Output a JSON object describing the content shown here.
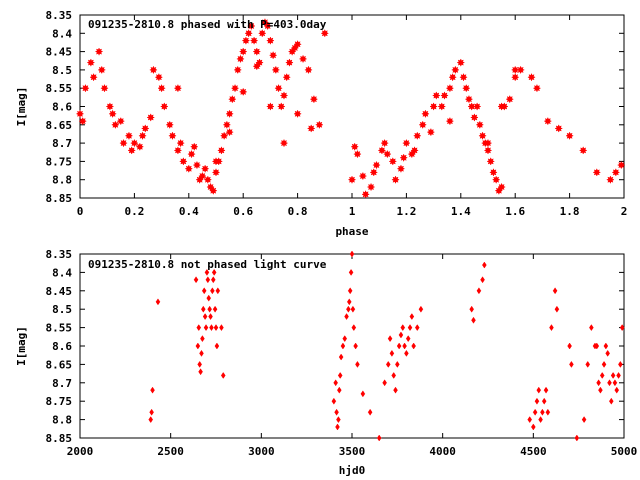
{
  "colors": {
    "points": "#ff0000",
    "axes": "#000000",
    "background": "#ffffff"
  },
  "chart_data": [
    {
      "type": "scatter",
      "title": "091235-2810.8 phased with P=403.0day",
      "xlabel": "phase",
      "ylabel": "I[mag]",
      "xlim": [
        0,
        2
      ],
      "ylim": [
        8.35,
        8.85
      ],
      "y_inverted": true,
      "grid": false,
      "x_ticks": [
        0,
        0.2,
        0.4,
        0.6,
        0.8,
        1,
        1.2,
        1.4,
        1.6,
        1.8,
        2
      ],
      "x_tick_labels": [
        "0",
        "0.2",
        "0.4",
        "0.6",
        "0.8",
        "1",
        "1.2",
        "1.4",
        "1.6",
        "1.8",
        "2"
      ],
      "y_ticks": [
        8.35,
        8.4,
        8.45,
        8.5,
        8.55,
        8.6,
        8.65,
        8.7,
        8.75,
        8.8,
        8.85
      ],
      "y_tick_labels": [
        "8.35",
        "8.4",
        "8.45",
        "8.5",
        "8.55",
        "8.6",
        "8.65",
        "8.7",
        "8.75",
        "8.8",
        "8.85"
      ],
      "marker": "star",
      "series": [
        {
          "x": [
            0.0,
            0.01,
            0.02,
            0.04,
            0.05,
            0.07,
            0.08,
            0.09,
            0.11,
            0.12,
            0.13,
            0.15,
            0.16,
            0.18,
            0.19,
            0.2,
            0.22,
            0.23,
            0.24,
            0.26,
            0.27,
            0.29,
            0.3,
            0.31,
            0.33,
            0.34,
            0.36,
            0.37,
            0.38,
            0.4,
            0.41,
            0.42,
            0.43,
            0.44,
            0.45,
            0.46,
            0.47,
            0.48,
            0.49,
            0.5,
            0.51,
            0.52,
            0.53,
            0.54,
            0.55,
            0.56,
            0.57,
            0.58,
            0.59,
            0.6,
            0.61,
            0.62,
            0.63,
            0.64,
            0.65,
            0.66,
            0.67,
            0.68,
            0.69,
            0.7,
            0.71,
            0.72,
            0.73,
            0.74,
            0.75,
            0.76,
            0.77,
            0.78,
            0.79,
            0.8,
            0.82,
            0.84,
            0.86,
            0.88,
            0.9,
            0.36,
            0.5,
            0.55,
            0.6,
            0.65,
            0.7,
            0.75,
            0.8,
            0.85,
            1.0,
            1.01,
            1.02,
            1.04,
            1.05,
            1.07,
            1.08,
            1.09,
            1.11,
            1.12,
            1.13,
            1.15,
            1.16,
            1.18,
            1.19,
            1.2,
            1.22,
            1.23,
            1.24,
            1.26,
            1.27,
            1.29,
            1.3,
            1.31,
            1.33,
            1.34,
            1.36,
            1.37,
            1.38,
            1.4,
            1.41,
            1.42,
            1.43,
            1.44,
            1.45,
            1.46,
            1.47,
            1.48,
            1.49,
            1.5,
            1.51,
            1.52,
            1.53,
            1.54,
            1.55,
            1.56,
            1.58,
            1.6,
            1.62,
            1.66,
            1.68,
            1.72,
            1.76,
            1.8,
            1.85,
            1.9,
            1.95,
            1.97,
            1.99,
            1.36,
            1.5,
            1.55,
            1.6
          ],
          "y": [
            8.62,
            8.64,
            8.55,
            8.48,
            8.52,
            8.45,
            8.5,
            8.55,
            8.6,
            8.62,
            8.65,
            8.64,
            8.7,
            8.68,
            8.72,
            8.7,
            8.71,
            8.68,
            8.66,
            8.63,
            8.5,
            8.52,
            8.55,
            8.6,
            8.65,
            8.68,
            8.72,
            8.7,
            8.75,
            8.77,
            8.73,
            8.71,
            8.76,
            8.8,
            8.79,
            8.77,
            8.8,
            8.82,
            8.83,
            8.78,
            8.75,
            8.72,
            8.68,
            8.65,
            8.62,
            8.58,
            8.55,
            8.5,
            8.47,
            8.45,
            8.42,
            8.4,
            8.38,
            8.42,
            8.45,
            8.48,
            8.4,
            8.37,
            8.38,
            8.42,
            8.46,
            8.5,
            8.55,
            8.6,
            8.57,
            8.52,
            8.48,
            8.45,
            8.44,
            8.43,
            8.47,
            8.5,
            8.58,
            8.65,
            8.4,
            8.55,
            8.75,
            8.67,
            8.56,
            8.49,
            8.6,
            8.7,
            8.62,
            8.66,
            8.8,
            8.71,
            8.73,
            8.79,
            8.84,
            8.82,
            8.78,
            8.76,
            8.72,
            8.7,
            8.73,
            8.75,
            8.8,
            8.77,
            8.74,
            8.7,
            8.73,
            8.72,
            8.68,
            8.65,
            8.62,
            8.67,
            8.6,
            8.57,
            8.6,
            8.57,
            8.55,
            8.52,
            8.5,
            8.48,
            8.52,
            8.55,
            8.58,
            8.6,
            8.63,
            8.6,
            8.65,
            8.68,
            8.7,
            8.72,
            8.75,
            8.78,
            8.8,
            8.83,
            8.82,
            8.6,
            8.58,
            8.52,
            8.5,
            8.52,
            8.55,
            8.64,
            8.66,
            8.68,
            8.72,
            8.78,
            8.8,
            8.78,
            8.76,
            8.64,
            8.7,
            8.6,
            8.5
          ],
          "name": ""
        }
      ]
    },
    {
      "type": "scatter",
      "title": "091235-2810.8 not phased light curve",
      "xlabel": "hjd0",
      "ylabel": "I[mag]",
      "xlim": [
        2000,
        5000
      ],
      "ylim": [
        8.35,
        8.85
      ],
      "y_inverted": true,
      "grid": false,
      "x_ticks": [
        2000,
        2500,
        3000,
        3500,
        4000,
        4500,
        5000
      ],
      "x_tick_labels": [
        "2000",
        "2500",
        "3000",
        "3500",
        "4000",
        "4500",
        "5000"
      ],
      "y_ticks": [
        8.35,
        8.4,
        8.45,
        8.5,
        8.55,
        8.6,
        8.65,
        8.7,
        8.75,
        8.8,
        8.85
      ],
      "y_tick_labels": [
        "8.35",
        "8.4",
        "8.45",
        "8.5",
        "8.55",
        "8.6",
        "8.65",
        "8.7",
        "8.75",
        "8.8",
        "8.85"
      ],
      "marker": "diamond",
      "series": [
        {
          "x": [
            2390,
            2395,
            2400,
            2430,
            2640,
            2650,
            2655,
            2660,
            2665,
            2670,
            2675,
            2680,
            2685,
            2690,
            2695,
            2700,
            2705,
            2710,
            2715,
            2720,
            2725,
            2730,
            2735,
            2740,
            2745,
            2750,
            2755,
            2760,
            2780,
            2790,
            3400,
            3410,
            3415,
            3420,
            3425,
            3430,
            3435,
            3440,
            3450,
            3460,
            3470,
            3480,
            3485,
            3490,
            3495,
            3500,
            3505,
            3510,
            3520,
            3530,
            3560,
            3600,
            3650,
            3680,
            3700,
            3710,
            3720,
            3730,
            3740,
            3750,
            3760,
            3770,
            3780,
            3790,
            3800,
            3810,
            3820,
            3830,
            3840,
            3860,
            3880,
            4160,
            4170,
            4200,
            4220,
            4230,
            4480,
            4500,
            4510,
            4520,
            4530,
            4540,
            4550,
            4560,
            4570,
            4580,
            4600,
            4620,
            4630,
            4700,
            4710,
            4740,
            4780,
            4800,
            4820,
            4840,
            4850,
            4860,
            4870,
            4880,
            4890,
            4900,
            4910,
            4920,
            4930,
            4940,
            4950,
            4960,
            4970,
            4980,
            4990
          ],
          "y": [
            8.8,
            8.78,
            8.72,
            8.48,
            8.42,
            8.6,
            8.55,
            8.65,
            8.67,
            8.62,
            8.58,
            8.5,
            8.45,
            8.52,
            8.55,
            8.4,
            8.42,
            8.47,
            8.5,
            8.52,
            8.55,
            8.45,
            8.42,
            8.4,
            8.5,
            8.55,
            8.6,
            8.45,
            8.55,
            8.68,
            8.75,
            8.7,
            8.78,
            8.82,
            8.8,
            8.72,
            8.68,
            8.63,
            8.6,
            8.58,
            8.52,
            8.5,
            8.48,
            8.45,
            8.4,
            8.35,
            8.5,
            8.55,
            8.6,
            8.65,
            8.73,
            8.78,
            8.85,
            8.7,
            8.65,
            8.58,
            8.62,
            8.68,
            8.72,
            8.65,
            8.6,
            8.57,
            8.55,
            8.6,
            8.62,
            8.58,
            8.55,
            8.52,
            8.6,
            8.55,
            8.5,
            8.5,
            8.53,
            8.45,
            8.42,
            8.38,
            8.8,
            8.82,
            8.78,
            8.75,
            8.72,
            8.8,
            8.78,
            8.75,
            8.72,
            8.78,
            8.55,
            8.45,
            8.5,
            8.6,
            8.65,
            8.85,
            8.8,
            8.65,
            8.55,
            8.6,
            8.6,
            8.7,
            8.72,
            8.68,
            8.65,
            8.6,
            8.62,
            8.7,
            8.75,
            8.68,
            8.7,
            8.72,
            8.68,
            8.65,
            8.55
          ],
          "name": ""
        }
      ]
    }
  ]
}
